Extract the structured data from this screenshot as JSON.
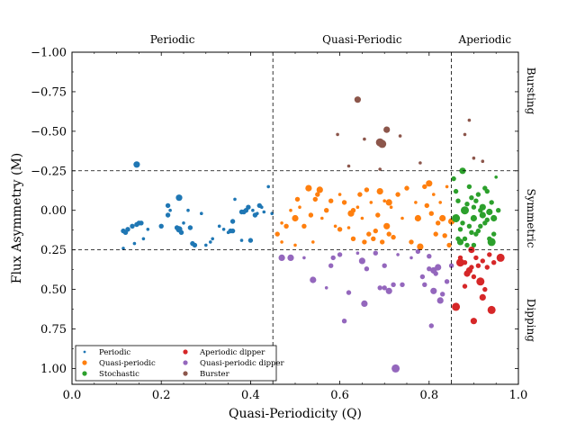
{
  "chart_data": {
    "type": "scatter",
    "title": "",
    "xlabel": "Quasi-Periodicity (Q)",
    "ylabel": "Flux Asymmetry (M)",
    "xlim": [
      0.0,
      1.0
    ],
    "ylim": [
      1.1,
      -1.0
    ],
    "y_inverted": true,
    "xticks": [
      "0.0",
      "0.2",
      "0.4",
      "0.6",
      "0.8",
      "1.0"
    ],
    "yticks": [
      "−1.00",
      "−0.75",
      "−0.50",
      "−0.25",
      "0.00",
      "0.25",
      "0.50",
      "0.75",
      "1.00"
    ],
    "grid": false,
    "legend_position": "lower-left",
    "region_boundaries": {
      "x": [
        0.45,
        0.85
      ],
      "y": [
        -0.25,
        0.25
      ]
    },
    "top_region_labels": [
      "Periodic",
      "Quasi-Periodic",
      "Aperiodic"
    ],
    "side_region_labels": [
      "Bursting",
      "Symmetric",
      "Dipping"
    ],
    "series": [
      {
        "name": "Periodic",
        "color": "#1f77b4",
        "points": [
          [
            0.115,
            0.13
          ],
          [
            0.12,
            0.14
          ],
          [
            0.125,
            0.12
          ],
          [
            0.135,
            0.1
          ],
          [
            0.14,
            0.21
          ],
          [
            0.145,
            0.09
          ],
          [
            0.15,
            0.08
          ],
          [
            0.155,
            0.08
          ],
          [
            0.16,
            0.18
          ],
          [
            0.17,
            0.12
          ],
          [
            0.145,
            -0.29
          ],
          [
            0.115,
            0.24
          ],
          [
            0.2,
            0.1
          ],
          [
            0.215,
            0.03
          ],
          [
            0.22,
            0.0
          ],
          [
            0.235,
            0.11
          ],
          [
            0.24,
            0.12
          ],
          [
            0.245,
            0.14
          ],
          [
            0.25,
            0.08
          ],
          [
            0.26,
            0.0
          ],
          [
            0.265,
            0.11
          ],
          [
            0.27,
            0.21
          ],
          [
            0.275,
            0.22
          ],
          [
            0.29,
            0.02
          ],
          [
            0.3,
            0.22
          ],
          [
            0.31,
            0.2
          ],
          [
            0.315,
            0.18
          ],
          [
            0.33,
            0.1
          ],
          [
            0.34,
            0.12
          ],
          [
            0.35,
            0.14
          ],
          [
            0.355,
            0.13
          ],
          [
            0.36,
            0.07
          ],
          [
            0.365,
            -0.07
          ],
          [
            0.38,
            0.19
          ],
          [
            0.385,
            0.01
          ],
          [
            0.39,
            0.0
          ],
          [
            0.395,
            -0.02
          ],
          [
            0.4,
            0.19
          ],
          [
            0.405,
            0.0
          ],
          [
            0.41,
            0.03
          ],
          [
            0.415,
            0.02
          ],
          [
            0.42,
            -0.03
          ],
          [
            0.425,
            -0.02
          ],
          [
            0.43,
            0.01
          ],
          [
            0.44,
            -0.15
          ],
          [
            0.448,
            0.02
          ],
          [
            0.24,
            -0.08
          ],
          [
            0.215,
            -0.03
          ],
          [
            0.38,
            0.01
          ],
          [
            0.36,
            0.13
          ]
        ],
        "sizes": [
          3,
          3,
          3,
          3,
          2,
          3,
          3,
          3,
          2,
          2,
          4,
          2,
          3,
          3,
          2,
          3,
          4,
          3,
          2,
          2,
          3,
          3,
          3,
          2,
          2,
          2,
          2,
          2,
          2,
          2,
          3,
          3,
          2,
          2,
          3,
          3,
          3,
          3,
          2,
          3,
          2,
          3,
          2,
          2,
          2,
          2,
          4,
          3,
          3,
          3
        ]
      },
      {
        "name": "Quasi-periodic",
        "color": "#ff7f0e",
        "points": [
          [
            0.46,
            0.15
          ],
          [
            0.47,
            0.2
          ],
          [
            0.48,
            0.1
          ],
          [
            0.49,
            0.0
          ],
          [
            0.5,
            0.05
          ],
          [
            0.505,
            -0.07
          ],
          [
            0.51,
            -0.02
          ],
          [
            0.52,
            0.1
          ],
          [
            0.53,
            -0.14
          ],
          [
            0.535,
            0.03
          ],
          [
            0.54,
            0.2
          ],
          [
            0.545,
            -0.07
          ],
          [
            0.55,
            -0.1
          ],
          [
            0.555,
            -0.13
          ],
          [
            0.56,
            0.05
          ],
          [
            0.57,
            0.0
          ],
          [
            0.58,
            -0.06
          ],
          [
            0.59,
            0.1
          ],
          [
            0.6,
            0.12
          ],
          [
            0.61,
            -0.05
          ],
          [
            0.62,
            0.11
          ],
          [
            0.625,
            0.02
          ],
          [
            0.63,
            0.18
          ],
          [
            0.64,
            -0.02
          ],
          [
            0.645,
            -0.1
          ],
          [
            0.65,
            0.05
          ],
          [
            0.655,
            0.2
          ],
          [
            0.66,
            -0.13
          ],
          [
            0.665,
            0.15
          ],
          [
            0.67,
            -0.05
          ],
          [
            0.675,
            0.18
          ],
          [
            0.68,
            0.13
          ],
          [
            0.685,
            0.03
          ],
          [
            0.69,
            -0.12
          ],
          [
            0.695,
            0.2
          ],
          [
            0.7,
            -0.06
          ],
          [
            0.705,
            0.1
          ],
          [
            0.71,
            0.15
          ],
          [
            0.715,
            -0.02
          ],
          [
            0.72,
            0.17
          ],
          [
            0.73,
            -0.1
          ],
          [
            0.74,
            0.05
          ],
          [
            0.75,
            -0.14
          ],
          [
            0.76,
            0.2
          ],
          [
            0.77,
            -0.05
          ],
          [
            0.775,
            0.05
          ],
          [
            0.78,
            0.23
          ],
          [
            0.79,
            -0.15
          ],
          [
            0.795,
            -0.03
          ],
          [
            0.8,
            -0.17
          ],
          [
            0.805,
            0.02
          ],
          [
            0.81,
            -0.1
          ],
          [
            0.815,
            0.15
          ],
          [
            0.82,
            0.08
          ],
          [
            0.825,
            -0.05
          ],
          [
            0.83,
            0.05
          ],
          [
            0.835,
            0.16
          ],
          [
            0.84,
            -0.15
          ],
          [
            0.845,
            0.22
          ],
          [
            0.85,
            0.07
          ],
          [
            0.71,
            -0.05
          ],
          [
            0.63,
            0.0
          ],
          [
            0.6,
            -0.1
          ],
          [
            0.47,
            0.08
          ],
          [
            0.5,
            0.22
          ]
        ],
        "sizes": [
          3,
          2,
          3,
          2,
          4,
          3,
          2,
          3,
          4,
          3,
          2,
          3,
          3,
          4,
          2,
          3,
          3,
          2,
          3,
          3,
          2,
          4,
          3,
          2,
          3,
          2,
          3,
          3,
          3,
          2,
          3,
          3,
          3,
          4,
          3,
          2,
          4,
          3,
          2,
          3,
          3,
          2,
          3,
          3,
          2,
          4,
          4,
          3,
          3,
          4,
          3,
          2,
          3,
          3,
          2,
          4,
          3,
          2,
          3,
          4,
          4,
          3,
          2,
          2,
          2
        ]
      },
      {
        "name": "Stochastic",
        "color": "#2ca02c",
        "points": [
          [
            0.855,
            -0.2
          ],
          [
            0.86,
            0.05
          ],
          [
            0.865,
            -0.06
          ],
          [
            0.87,
            0.2
          ],
          [
            0.875,
            -0.25
          ],
          [
            0.88,
            0.0
          ],
          [
            0.885,
            -0.04
          ],
          [
            0.89,
            0.1
          ],
          [
            0.895,
            -0.08
          ],
          [
            0.9,
            0.05
          ],
          [
            0.905,
            0.15
          ],
          [
            0.91,
            -0.1
          ],
          [
            0.915,
            0.0
          ],
          [
            0.92,
            -0.02
          ],
          [
            0.925,
            0.08
          ],
          [
            0.93,
            -0.12
          ],
          [
            0.935,
            0.18
          ],
          [
            0.94,
            0.2
          ],
          [
            0.945,
            0.05
          ],
          [
            0.95,
            -0.21
          ],
          [
            0.87,
            0.12
          ],
          [
            0.88,
            0.18
          ],
          [
            0.89,
            -0.15
          ],
          [
            0.9,
            -0.02
          ],
          [
            0.91,
            0.13
          ],
          [
            0.92,
            0.03
          ],
          [
            0.93,
            0.06
          ],
          [
            0.94,
            -0.05
          ],
          [
            0.86,
            -0.12
          ],
          [
            0.875,
            0.08
          ],
          [
            0.885,
            0.22
          ],
          [
            0.895,
            0.14
          ],
          [
            0.905,
            -0.06
          ],
          [
            0.915,
            0.1
          ],
          [
            0.925,
            -0.14
          ],
          [
            0.935,
            0.01
          ],
          [
            0.945,
            0.15
          ],
          [
            0.955,
            0.0
          ],
          [
            0.865,
            0.18
          ],
          [
            0.9,
            0.22
          ]
        ],
        "sizes": [
          3,
          5,
          3,
          4,
          4,
          5,
          3,
          3,
          3,
          4,
          3,
          3,
          3,
          4,
          3,
          3,
          3,
          5,
          4,
          2,
          3,
          3,
          3,
          3,
          3,
          4,
          3,
          3,
          3,
          3,
          3,
          3,
          3,
          3,
          3,
          4,
          3,
          3,
          3,
          3
        ]
      },
      {
        "name": "Aperiodic dipper",
        "color": "#d62728",
        "points": [
          [
            0.86,
            0.61
          ],
          [
            0.87,
            0.33
          ],
          [
            0.88,
            0.48
          ],
          [
            0.885,
            0.4
          ],
          [
            0.89,
            0.38
          ],
          [
            0.895,
            0.25
          ],
          [
            0.9,
            0.7
          ],
          [
            0.905,
            0.3
          ],
          [
            0.91,
            0.35
          ],
          [
            0.915,
            0.45
          ],
          [
            0.92,
            0.55
          ],
          [
            0.925,
            0.5
          ],
          [
            0.93,
            0.36
          ],
          [
            0.935,
            0.28
          ],
          [
            0.94,
            0.63
          ],
          [
            0.945,
            0.33
          ],
          [
            0.96,
            0.3
          ],
          [
            0.87,
            0.3
          ],
          [
            0.9,
            0.42
          ],
          [
            0.92,
            0.32
          ],
          [
            0.88,
            0.33
          ],
          [
            0.895,
            0.36
          ]
        ],
        "sizes": [
          5,
          5,
          3,
          4,
          4,
          4,
          4,
          3,
          3,
          5,
          4,
          3,
          3,
          3,
          5,
          3,
          5,
          3,
          3,
          3,
          3,
          3
        ]
      },
      {
        "name": "Quasi-periodic dipper",
        "color": "#9467bd",
        "points": [
          [
            0.47,
            0.3
          ],
          [
            0.49,
            0.3
          ],
          [
            0.52,
            0.3
          ],
          [
            0.54,
            0.44
          ],
          [
            0.57,
            0.49
          ],
          [
            0.58,
            0.35
          ],
          [
            0.585,
            0.3
          ],
          [
            0.6,
            0.28
          ],
          [
            0.61,
            0.7
          ],
          [
            0.62,
            0.52
          ],
          [
            0.64,
            0.27
          ],
          [
            0.65,
            0.32
          ],
          [
            0.655,
            0.59
          ],
          [
            0.66,
            0.37
          ],
          [
            0.68,
            0.27
          ],
          [
            0.69,
            0.49
          ],
          [
            0.7,
            0.35
          ],
          [
            0.71,
            0.51
          ],
          [
            0.72,
            0.47
          ],
          [
            0.73,
            0.28
          ],
          [
            0.74,
            0.47
          ],
          [
            0.76,
            0.3
          ],
          [
            0.775,
            0.26
          ],
          [
            0.785,
            0.42
          ],
          [
            0.8,
            0.29
          ],
          [
            0.805,
            0.73
          ],
          [
            0.81,
            0.38
          ],
          [
            0.815,
            0.4
          ],
          [
            0.82,
            0.36
          ],
          [
            0.825,
            0.57
          ],
          [
            0.83,
            0.53
          ],
          [
            0.84,
            0.45
          ],
          [
            0.85,
            0.35
          ],
          [
            0.725,
            1.0
          ],
          [
            0.8,
            0.37
          ],
          [
            0.81,
            0.51
          ],
          [
            0.79,
            0.47
          ],
          [
            0.7,
            0.49
          ]
        ],
        "sizes": [
          4,
          4,
          2,
          4,
          2,
          3,
          3,
          3,
          3,
          3,
          2,
          4,
          4,
          3,
          3,
          3,
          3,
          4,
          3,
          2,
          3,
          2,
          3,
          3,
          3,
          3,
          4,
          3,
          4,
          4,
          3,
          3,
          3,
          5,
          3,
          4,
          3,
          3
        ]
      },
      {
        "name": "Burster",
        "color": "#8c564b",
        "points": [
          [
            0.64,
            -0.7
          ],
          [
            0.705,
            -0.51
          ],
          [
            0.69,
            -0.43
          ],
          [
            0.695,
            -0.42
          ],
          [
            0.735,
            -0.47
          ],
          [
            0.595,
            -0.48
          ],
          [
            0.655,
            -0.45
          ],
          [
            0.62,
            -0.28
          ],
          [
            0.69,
            -0.26
          ],
          [
            0.78,
            -0.3
          ],
          [
            0.89,
            -0.57
          ],
          [
            0.88,
            -0.48
          ],
          [
            0.9,
            -0.33
          ],
          [
            0.92,
            -0.31
          ]
        ],
        "sizes": [
          4,
          4,
          5,
          5,
          2,
          2,
          2,
          2,
          2,
          2,
          2,
          2,
          2,
          2
        ]
      }
    ]
  }
}
